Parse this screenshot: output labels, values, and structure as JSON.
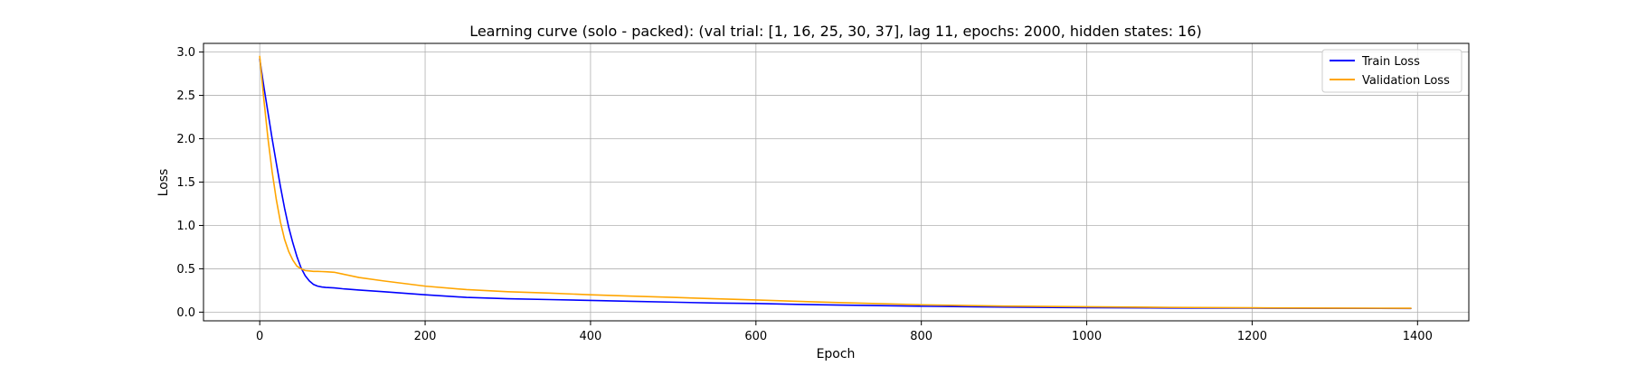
{
  "chart_data": {
    "type": "line",
    "title": "Learning curve (solo - packed): (val trial: [1, 16, 25, 30, 37], lag 11, epochs: 2000, hidden states: 16)",
    "xlabel": "Epoch",
    "ylabel": "Loss",
    "xlim": [
      -68,
      1462
    ],
    "ylim": [
      -0.1,
      3.1
    ],
    "xticks": [
      0,
      200,
      400,
      600,
      800,
      1000,
      1200,
      1400
    ],
    "xtick_labels": [
      "0",
      "200",
      "400",
      "600",
      "800",
      "1000",
      "1200",
      "1400"
    ],
    "yticks": [
      0.0,
      0.5,
      1.0,
      1.5,
      2.0,
      2.5,
      3.0
    ],
    "ytick_labels": [
      "0.0",
      "0.5",
      "1.0",
      "1.5",
      "2.0",
      "2.5",
      "3.0"
    ],
    "grid": true,
    "legend_position": "upper right",
    "series": [
      {
        "name": "Train Loss",
        "color": "#0000ff",
        "x": [
          0,
          5,
          10,
          15,
          20,
          25,
          30,
          35,
          40,
          45,
          50,
          55,
          60,
          65,
          70,
          75,
          80,
          90,
          100,
          120,
          150,
          200,
          250,
          300,
          350,
          400,
          450,
          500,
          550,
          600,
          650,
          700,
          800,
          900,
          1000,
          1100,
          1200,
          1300,
          1392
        ],
        "y": [
          2.92,
          2.6,
          2.3,
          2.0,
          1.72,
          1.45,
          1.2,
          0.98,
          0.8,
          0.64,
          0.51,
          0.42,
          0.36,
          0.32,
          0.3,
          0.29,
          0.285,
          0.28,
          0.27,
          0.255,
          0.235,
          0.2,
          0.17,
          0.155,
          0.145,
          0.135,
          0.125,
          0.115,
          0.105,
          0.1,
          0.09,
          0.082,
          0.068,
          0.058,
          0.052,
          0.048,
          0.046,
          0.044,
          0.043
        ]
      },
      {
        "name": "Validation Loss",
        "color": "#ffa500",
        "x": [
          0,
          5,
          10,
          15,
          20,
          25,
          30,
          35,
          40,
          45,
          50,
          55,
          60,
          65,
          70,
          75,
          80,
          90,
          100,
          120,
          150,
          200,
          250,
          300,
          350,
          400,
          450,
          500,
          550,
          600,
          650,
          700,
          800,
          900,
          1000,
          1100,
          1200,
          1300,
          1392
        ],
        "y": [
          2.95,
          2.45,
          2.0,
          1.62,
          1.3,
          1.04,
          0.84,
          0.7,
          0.6,
          0.53,
          0.5,
          0.48,
          0.475,
          0.47,
          0.47,
          0.468,
          0.466,
          0.46,
          0.44,
          0.4,
          0.36,
          0.3,
          0.26,
          0.235,
          0.22,
          0.2,
          0.185,
          0.17,
          0.155,
          0.14,
          0.125,
          0.11,
          0.085,
          0.07,
          0.062,
          0.055,
          0.05,
          0.047,
          0.045
        ]
      }
    ]
  }
}
